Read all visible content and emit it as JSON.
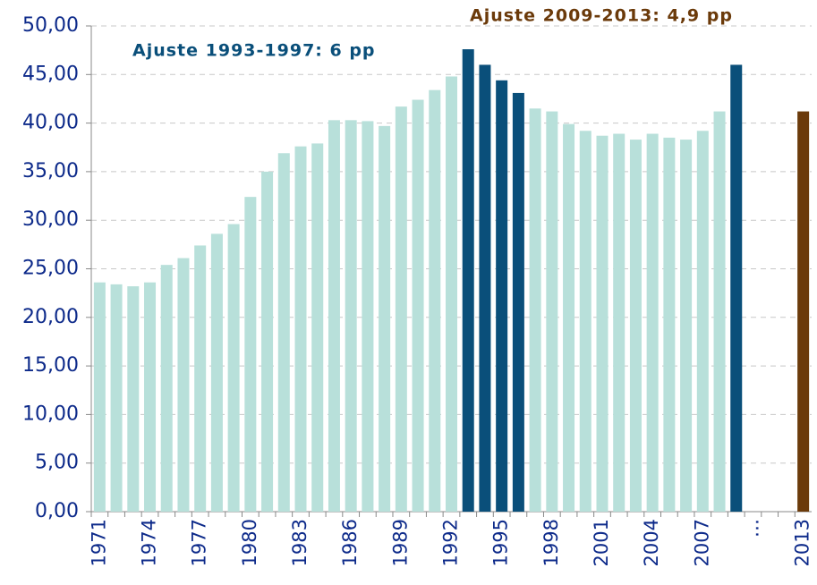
{
  "chart_data": {
    "type": "bar",
    "annotations": [
      {
        "text": "Ajuste 1993-1997: 6 pp",
        "color": "#0a4f7a"
      },
      {
        "text": "Ajuste 2009-2013: 4,9 pp",
        "color": "#6b3a0a"
      }
    ],
    "categories": [
      "1971",
      null,
      null,
      "1974",
      null,
      null,
      "1977",
      null,
      null,
      "1980",
      null,
      null,
      "1983",
      null,
      null,
      "1986",
      null,
      null,
      "1989",
      null,
      null,
      "1992",
      null,
      null,
      "1995",
      null,
      null,
      "1998",
      null,
      null,
      "2001",
      null,
      null,
      "2004",
      null,
      null,
      "2007",
      null,
      null,
      "…",
      null,
      null,
      "2013"
    ],
    "values": [
      23.6,
      23.4,
      23.2,
      23.6,
      25.4,
      26.1,
      27.4,
      28.6,
      29.6,
      32.4,
      35.0,
      36.9,
      37.6,
      37.9,
      40.3,
      40.3,
      40.2,
      39.7,
      41.7,
      42.4,
      43.4,
      44.8,
      47.6,
      46.0,
      44.4,
      43.1,
      41.5,
      41.2,
      39.9,
      39.2,
      38.7,
      38.9,
      38.3,
      38.9,
      38.5,
      38.3,
      39.2,
      41.2,
      46.0,
      null,
      null,
      null,
      41.2
    ],
    "colors": [
      "#b8e0da",
      "#b8e0da",
      "#b8e0da",
      "#b8e0da",
      "#b8e0da",
      "#b8e0da",
      "#b8e0da",
      "#b8e0da",
      "#b8e0da",
      "#b8e0da",
      "#b8e0da",
      "#b8e0da",
      "#b8e0da",
      "#b8e0da",
      "#b8e0da",
      "#b8e0da",
      "#b8e0da",
      "#b8e0da",
      "#b8e0da",
      "#b8e0da",
      "#b8e0da",
      "#b8e0da",
      "#0a4f7a",
      "#0a4f7a",
      "#0a4f7a",
      "#0a4f7a",
      "#b8e0da",
      "#b8e0da",
      "#b8e0da",
      "#b8e0da",
      "#b8e0da",
      "#b8e0da",
      "#b8e0da",
      "#b8e0da",
      "#b8e0da",
      "#b8e0da",
      "#b8e0da",
      "#b8e0da",
      "#0a4f7a",
      "#b8e0da",
      "#b8e0da",
      "#b8e0da",
      "#6b3a0a"
    ],
    "ylim": [
      0,
      50
    ],
    "yticks": [
      {
        "value": 0,
        "label": "0,00"
      },
      {
        "value": 5,
        "label": "5,00"
      },
      {
        "value": 10,
        "label": "10,00"
      },
      {
        "value": 15,
        "label": "15,00"
      },
      {
        "value": 20,
        "label": "20,00"
      },
      {
        "value": 25,
        "label": "25,00"
      },
      {
        "value": 30,
        "label": "30,00"
      },
      {
        "value": 35,
        "label": "35,00"
      },
      {
        "value": 40,
        "label": "40,00"
      },
      {
        "value": 45,
        "label": "45,00"
      },
      {
        "value": 50,
        "label": "50,00"
      }
    ],
    "grid": true
  }
}
